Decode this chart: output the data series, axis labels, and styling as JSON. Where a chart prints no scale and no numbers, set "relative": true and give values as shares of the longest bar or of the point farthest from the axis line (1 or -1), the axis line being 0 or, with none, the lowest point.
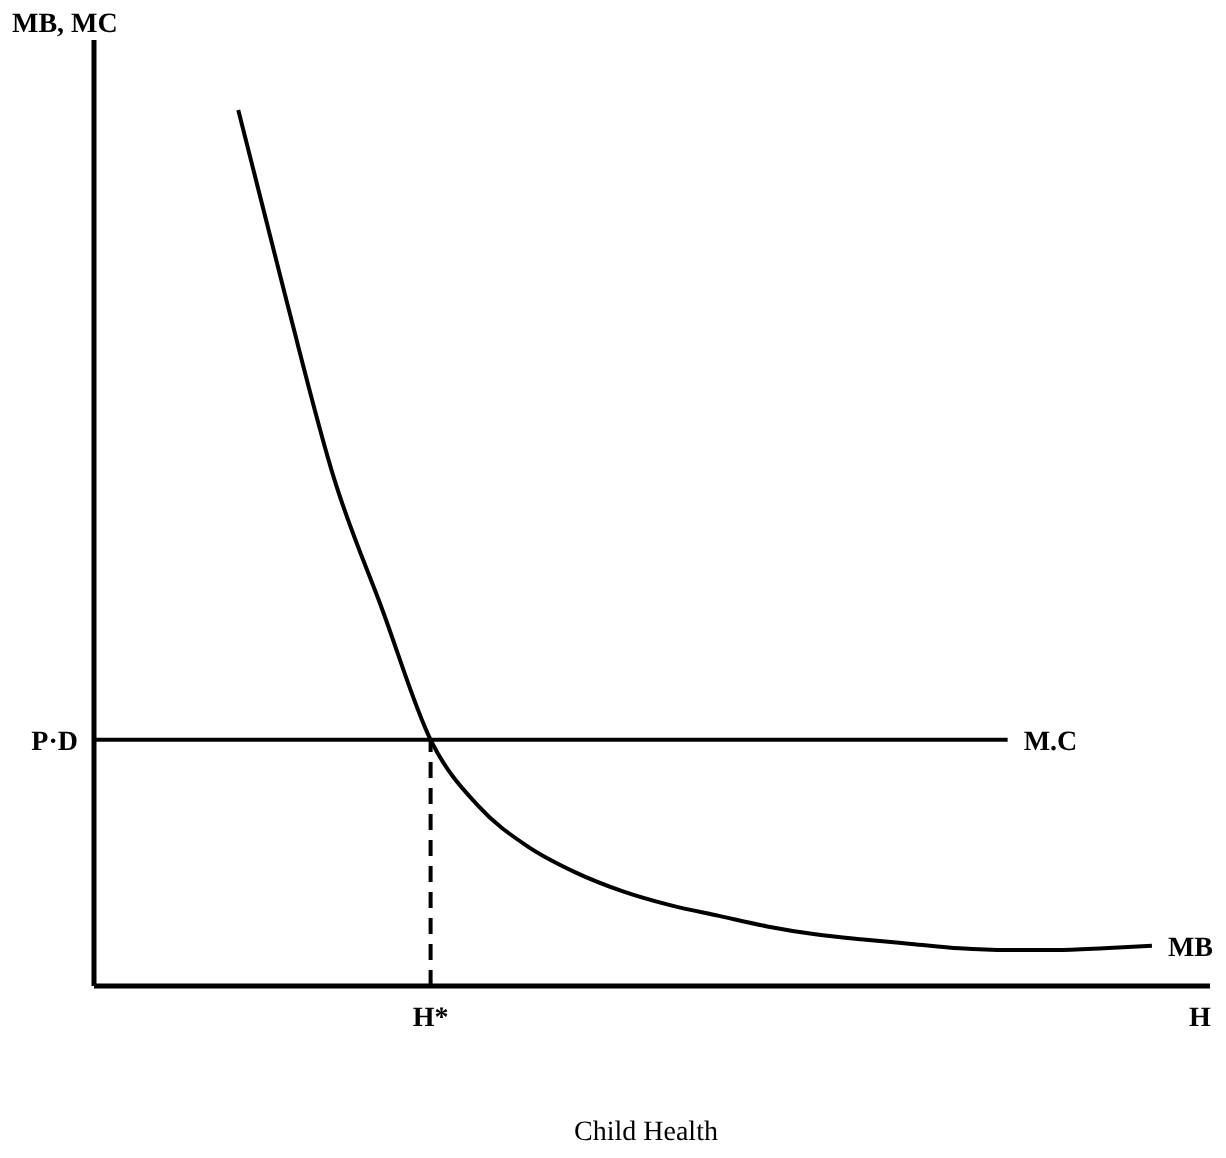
{
  "chart_data": {
    "type": "line",
    "relative": true,
    "xlabel": "Child Health",
    "ylabel": "MB, MC",
    "categories": [
      null,
      null,
      null,
      null,
      null,
      null,
      null,
      "H*",
      null,
      null,
      null,
      null,
      null,
      null,
      null,
      null,
      null,
      null,
      null,
      null,
      null,
      null,
      null,
      "H"
    ],
    "series": [
      {
        "name": "MB",
        "color": "#000000",
        "values": [
          null,
          null,
          null,
          1.0,
          0.783,
          0.578,
          0.429,
          0.281,
          0.205,
          0.16,
          0.13,
          0.108,
          0.092,
          0.08,
          0.068,
          0.059,
          0.053,
          0.048,
          0.043,
          0.041,
          0.041,
          0.043,
          0.046,
          null
        ]
      },
      {
        "name": "M.C",
        "color": "#000000",
        "values": [
          0.281,
          0.281,
          0.281,
          0.281,
          0.281,
          0.281,
          0.281,
          0.281,
          0.281,
          0.281,
          0.281,
          0.281,
          0.281,
          0.281,
          0.281,
          0.281,
          0.281,
          0.281,
          0.281,
          0.281,
          null,
          null,
          null,
          null
        ]
      }
    ],
    "ref_lines": [
      {
        "axis": "x",
        "value": "H*",
        "line_style": "dashed",
        "color": "#000000"
      }
    ],
    "annotations": [
      "P·D"
    ],
    "line_style": "solid",
    "marker": "none"
  }
}
